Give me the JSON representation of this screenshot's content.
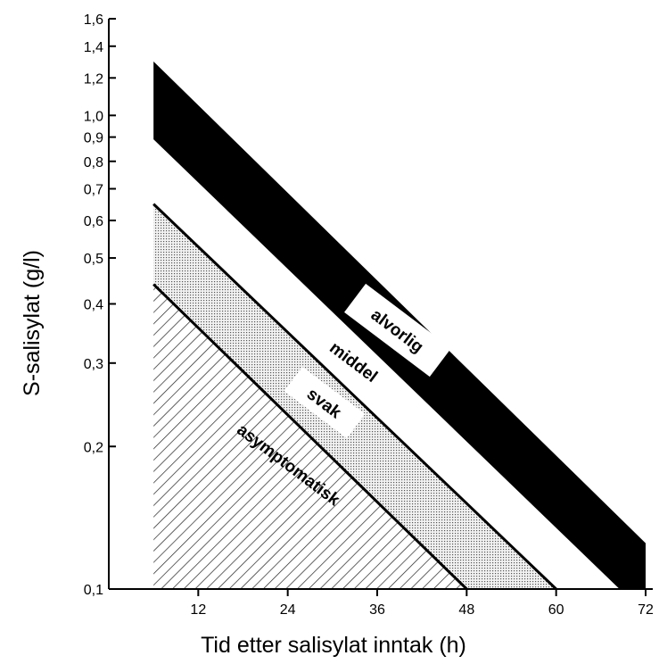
{
  "chart_data": {
    "type": "area",
    "xlabel": "Tid etter salisylat inntak (h)",
    "ylabel": "S-salisylat (g/l)",
    "xlim": [
      0,
      72
    ],
    "ylim": [
      0.1,
      1.6
    ],
    "y_scale": "log",
    "x_ticks": [
      "12",
      "24",
      "36",
      "48",
      "60",
      "72"
    ],
    "x_tick_values": [
      12,
      24,
      36,
      48,
      60,
      72
    ],
    "y_ticks": [
      "0,1",
      "0,2",
      "0,3",
      "0,4",
      "0,5",
      "0,6",
      "0,7",
      "0,8",
      "0,9",
      "1,0",
      "1,2",
      "1,4",
      "1,6"
    ],
    "y_tick_values": [
      0.1,
      0.2,
      0.3,
      0.4,
      0.5,
      0.6,
      0.7,
      0.8,
      0.9,
      1.0,
      1.2,
      1.4,
      1.6
    ],
    "grid": false,
    "boundaries": [
      {
        "points": [
          [
            6,
            0.44
          ],
          [
            48,
            0.1
          ]
        ]
      },
      {
        "points": [
          [
            6,
            0.65
          ],
          [
            60,
            0.1
          ]
        ]
      },
      {
        "points": [
          [
            6,
            0.89
          ],
          [
            68.5,
            0.1
          ]
        ]
      },
      {
        "points": [
          [
            6,
            1.3
          ],
          [
            72,
            0.125
          ]
        ]
      }
    ],
    "zones": [
      {
        "label": "asymptomatisk",
        "fill": "hatch"
      },
      {
        "label": "svak",
        "fill": "dots"
      },
      {
        "label": "middel",
        "fill": "#ffffff"
      },
      {
        "label": "alvorlig",
        "fill": "#000000"
      }
    ]
  }
}
